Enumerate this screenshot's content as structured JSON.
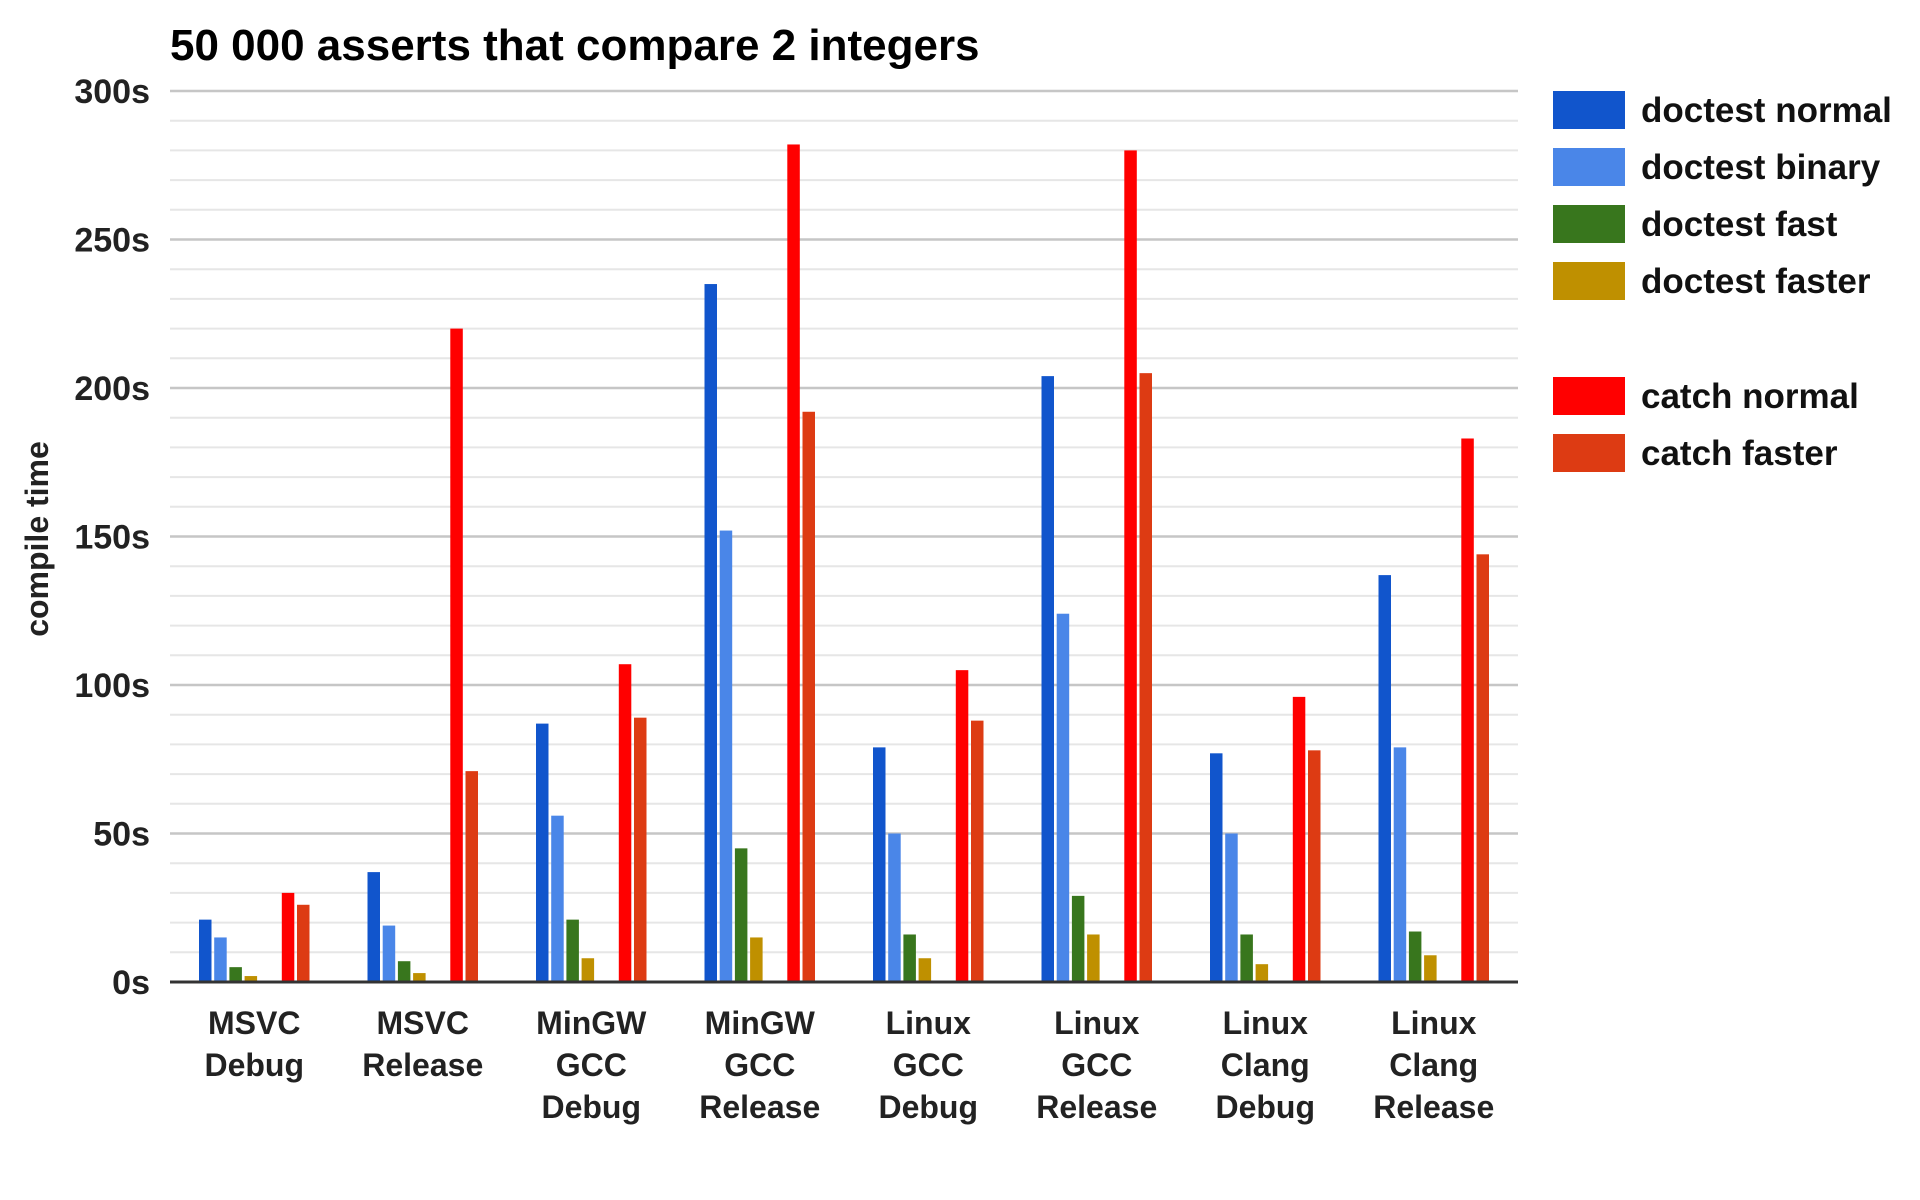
{
  "chart_data": {
    "type": "bar",
    "title": "50 000 asserts that compare 2 integers",
    "ylabel": "compile time",
    "xlabel": "",
    "ylim": [
      0,
      300
    ],
    "yticks": [
      0,
      50,
      100,
      150,
      200,
      250,
      300
    ],
    "ytick_labels": [
      "0s",
      "50s",
      "100s",
      "150s",
      "200s",
      "250s",
      "300s"
    ],
    "grid": true,
    "minor_grid": true,
    "legend_position": "right",
    "categories": [
      [
        "MSVC",
        "Debug"
      ],
      [
        "MSVC",
        "Release"
      ],
      [
        "MinGW",
        "GCC",
        "Debug"
      ],
      [
        "MinGW",
        "GCC",
        "Release"
      ],
      [
        "Linux",
        "GCC",
        "Debug"
      ],
      [
        "Linux",
        "GCC",
        "Release"
      ],
      [
        "Linux",
        "Clang",
        "Debug"
      ],
      [
        "Linux",
        "Clang",
        "Release"
      ]
    ],
    "series": [
      {
        "name": "doctest normal",
        "color": "#1155cc",
        "values": [
          21,
          37,
          87,
          235,
          79,
          204,
          77,
          137
        ]
      },
      {
        "name": "doctest binary",
        "color": "#4a86e8",
        "values": [
          15,
          19,
          56,
          152,
          50,
          124,
          50,
          79
        ]
      },
      {
        "name": "doctest fast",
        "color": "#38761d",
        "values": [
          5,
          7,
          21,
          45,
          16,
          29,
          16,
          17
        ]
      },
      {
        "name": "doctest faster",
        "color": "#bf9000",
        "values": [
          2,
          3,
          8,
          15,
          8,
          16,
          6,
          9
        ]
      },
      {
        "name": "catch normal",
        "color": "#ff0000",
        "values": [
          30,
          220,
          107,
          282,
          105,
          280,
          96,
          183
        ]
      },
      {
        "name": "catch faster",
        "color": "#dd3b13",
        "values": [
          26,
          71,
          89,
          192,
          88,
          205,
          78,
          144
        ]
      }
    ]
  }
}
